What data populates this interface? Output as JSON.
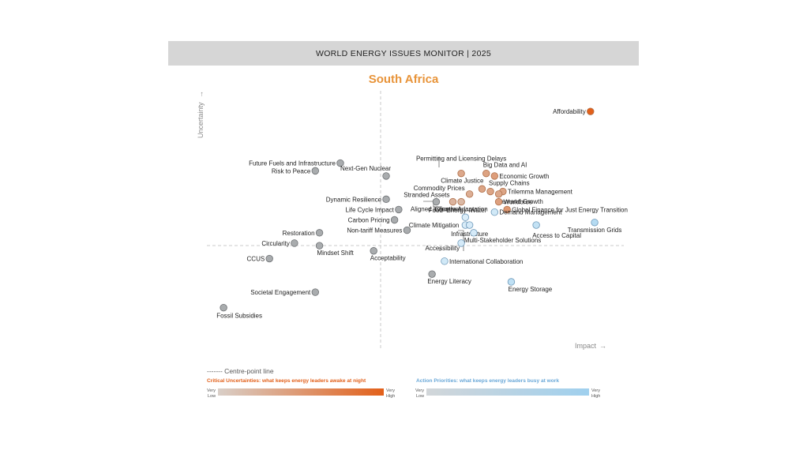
{
  "header": {
    "title": "WORLD ENERGY ISSUES MONITOR | 2025"
  },
  "chart_data": {
    "type": "scatter",
    "title": "South Africa",
    "xlabel": "Impact",
    "ylabel": "Uncertainty",
    "xlim": [
      0,
      100
    ],
    "ylim": [
      0,
      100
    ],
    "centre_point": {
      "x": 50,
      "y": 42
    },
    "grid": false,
    "colors": {
      "title": "#e8943a",
      "uncertainty_low": "#d9cfc8",
      "uncertainty_high": "#e2601a",
      "priority_low": "#d2d6d9",
      "priority_high": "#9fd0ee",
      "neutral": "#a9acae",
      "centre_line": "#bbbbbb"
    },
    "points": [
      {
        "label": "Affordability",
        "x": 92,
        "y": 92,
        "type": "uncertainty",
        "level": 1.0
      },
      {
        "label": "Permitting and Licensing Delays",
        "x": 61,
        "y": 68,
        "type": "uncertainty",
        "level": 0.35
      },
      {
        "label": "Big Data and AI",
        "x": 67,
        "y": 68,
        "type": "uncertainty",
        "level": 0.4
      },
      {
        "label": "Economic Growth",
        "x": 69,
        "y": 67,
        "type": "uncertainty",
        "level": 0.45
      },
      {
        "label": "Climate Justice",
        "x": 66,
        "y": 62,
        "type": "uncertainty",
        "level": 0.38
      },
      {
        "label": "Supply Chains",
        "x": 68,
        "y": 61,
        "type": "uncertainty",
        "level": 0.38
      },
      {
        "label": "Commodity Prices",
        "x": 63,
        "y": 60,
        "type": "uncertainty",
        "level": 0.3
      },
      {
        "label": "Trilemma Management",
        "x": 71,
        "y": 61,
        "type": "uncertainty",
        "level": 0.38
      },
      {
        "label": "Demand Growth",
        "x": 70,
        "y": 60,
        "type": "uncertainty",
        "level": 0.35
      },
      {
        "label": "Stranded Assets",
        "x": 59,
        "y": 57,
        "type": "uncertainty",
        "level": 0.25
      },
      {
        "label": "Workforce",
        "x": 70,
        "y": 57,
        "type": "uncertainty",
        "level": 0.42
      },
      {
        "label": "Climate Adaptation",
        "x": 61,
        "y": 57,
        "type": "uncertainty",
        "level": 0.2
      },
      {
        "label": "Global Finance for Just Energy Transition",
        "x": 72,
        "y": 54,
        "type": "uncertainty",
        "level": 0.5
      },
      {
        "label": "Aligned Incentives",
        "x": 55,
        "y": 57,
        "type": "neutral"
      },
      {
        "label": "Food–Energy–Water",
        "x": 62,
        "y": 51,
        "type": "priority",
        "level": 0.15
      },
      {
        "label": "Demand Management",
        "x": 69,
        "y": 53,
        "type": "priority",
        "level": 0.3
      },
      {
        "label": "Climate Mitigation",
        "x": 62,
        "y": 48,
        "type": "priority",
        "level": 0.2
      },
      {
        "label": "Infrastructure",
        "x": 63,
        "y": 48,
        "type": "priority",
        "level": 0.25
      },
      {
        "label": "Access to Capital",
        "x": 79,
        "y": 48,
        "type": "priority",
        "level": 0.5
      },
      {
        "label": "Transmission Grids",
        "x": 93,
        "y": 49,
        "type": "priority",
        "level": 0.7
      },
      {
        "label": "Accessibility",
        "x": 61,
        "y": 41,
        "type": "priority",
        "level": 0.25
      },
      {
        "label": "Multi-Stakeholder Solutions",
        "x": 64,
        "y": 45,
        "type": "priority",
        "level": 0.25
      },
      {
        "label": "International Collaboration",
        "x": 57,
        "y": 34,
        "type": "priority",
        "level": 0.3
      },
      {
        "label": "Energy Storage",
        "x": 73,
        "y": 26,
        "type": "priority",
        "level": 0.55
      },
      {
        "label": "Energy Literacy",
        "x": 54,
        "y": 29,
        "type": "neutral"
      },
      {
        "label": "Future Fuels and Infrastructure",
        "x": 32,
        "y": 72,
        "type": "neutral"
      },
      {
        "label": "Risk to Peace",
        "x": 26,
        "y": 69,
        "type": "neutral"
      },
      {
        "label": "Next-Gen Nuclear",
        "x": 43,
        "y": 67,
        "type": "neutral"
      },
      {
        "label": "Dynamic Resilience",
        "x": 43,
        "y": 58,
        "type": "neutral"
      },
      {
        "label": "Life Cycle Impact",
        "x": 46,
        "y": 54,
        "type": "neutral"
      },
      {
        "label": "Carbon Pricing",
        "x": 45,
        "y": 50,
        "type": "neutral"
      },
      {
        "label": "Non-tariff Measures",
        "x": 48,
        "y": 46,
        "type": "neutral"
      },
      {
        "label": "Restoration",
        "x": 27,
        "y": 45,
        "type": "neutral"
      },
      {
        "label": "Circularity",
        "x": 21,
        "y": 41,
        "type": "neutral"
      },
      {
        "label": "Mindset Shift",
        "x": 27,
        "y": 40,
        "type": "neutral"
      },
      {
        "label": "Acceptability",
        "x": 40,
        "y": 38,
        "type": "neutral"
      },
      {
        "label": "CCUS",
        "x": 15,
        "y": 35,
        "type": "neutral"
      },
      {
        "label": "Societal Engagement",
        "x": 26,
        "y": 22,
        "type": "neutral"
      },
      {
        "label": "Fossil Subsidies",
        "x": 4,
        "y": 16,
        "type": "neutral"
      }
    ],
    "legend": {
      "centre_line": "------- Centre-point line",
      "uncertainties": "Critical Uncertainties: what keeps energy leaders awake at night",
      "priorities": "Action Priorities: what keeps energy leaders busy at work",
      "very": "Very",
      "low": "Low",
      "high": "High"
    }
  }
}
